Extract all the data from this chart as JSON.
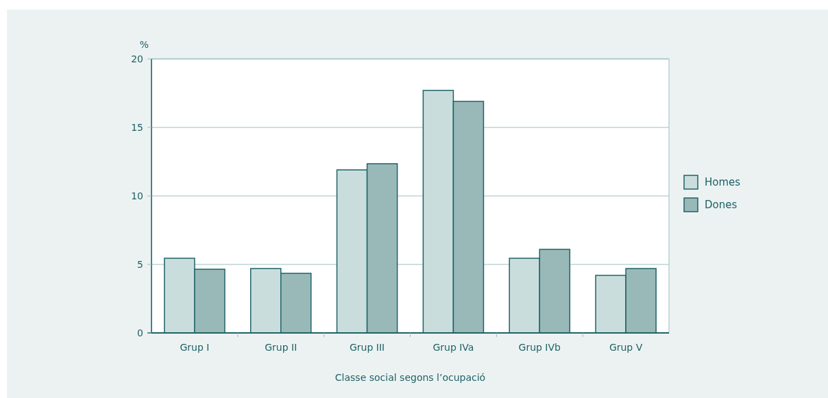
{
  "chart_data": {
    "type": "bar",
    "xlabel": "Classe social segons l’ocupació",
    "ylabel": "%",
    "categories": [
      "Grup I",
      "Grup II",
      "Grup III",
      "Grup IVa",
      "Grup IVb",
      "Grup V"
    ],
    "series": [
      {
        "name": "Homes",
        "color": "#cadddd",
        "values": [
          5.45,
          4.7,
          11.9,
          17.7,
          5.45,
          4.2
        ]
      },
      {
        "name": "Dones",
        "color": "#99b9b9",
        "values": [
          4.65,
          4.35,
          12.35,
          16.9,
          6.1,
          4.7
        ]
      }
    ],
    "ylim": [
      0,
      20
    ],
    "yticks": [
      0,
      5,
      10,
      15,
      20
    ],
    "grid": "y",
    "legend": "right"
  }
}
